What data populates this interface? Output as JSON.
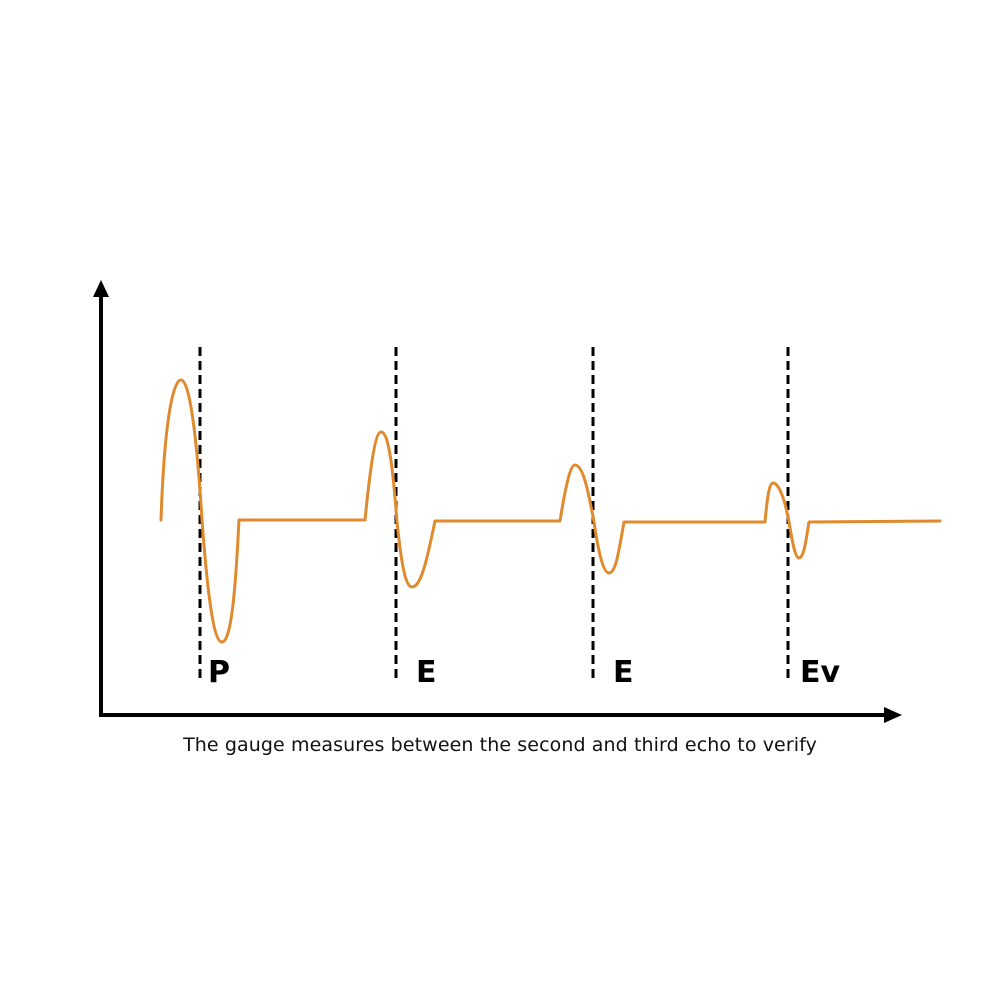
{
  "caption": "The gauge measures between the second and third echo to verify",
  "markers": [
    {
      "label": "P"
    },
    {
      "label": "E"
    },
    {
      "label": "E"
    },
    {
      "label": "Ev"
    }
  ],
  "colors": {
    "waveform": "#E08A2E",
    "axis": "#000000",
    "marker": "#000000"
  }
}
